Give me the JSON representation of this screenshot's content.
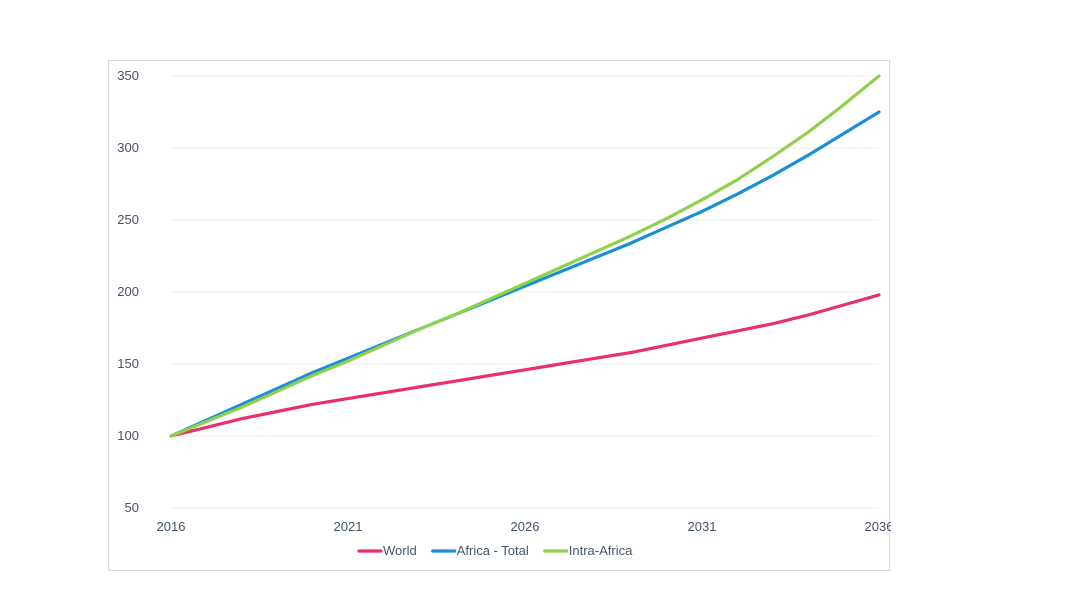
{
  "chart_data": {
    "type": "line",
    "title": "",
    "xlabel": "",
    "ylabel": "",
    "x": [
      2016,
      2017,
      2018,
      2019,
      2020,
      2021,
      2022,
      2023,
      2024,
      2025,
      2026,
      2027,
      2028,
      2029,
      2030,
      2031,
      2032,
      2033,
      2034,
      2035,
      2036
    ],
    "xticks": [
      "2016",
      "2021",
      "2026",
      "2031",
      "2036"
    ],
    "yticks": [
      "50",
      "100",
      "150",
      "200",
      "250",
      "300",
      "350"
    ],
    "xlim": [
      2016,
      2036
    ],
    "ylim": [
      50,
      350
    ],
    "grid": "horizontal",
    "legend": "bottom-center",
    "series": [
      {
        "name": "World",
        "color": "#e8306e",
        "values": [
          100,
          106,
          112,
          117,
          122,
          126,
          130,
          134,
          138,
          142,
          146,
          150,
          154,
          158,
          163,
          168,
          173,
          178,
          184,
          191,
          198
        ]
      },
      {
        "name": "Africa - Total",
        "color": "#1a8fd6",
        "values": [
          100,
          111,
          122,
          133,
          144,
          154,
          164,
          174,
          184,
          194,
          204,
          214,
          224,
          234,
          245,
          256,
          268,
          281,
          295,
          310,
          325
        ]
      },
      {
        "name": "Intra-Africa",
        "color": "#8fd14f",
        "values": [
          100,
          110,
          120,
          131,
          142,
          152,
          163,
          174,
          184,
          195,
          206,
          217,
          228,
          239,
          251,
          264,
          278,
          294,
          311,
          330,
          350
        ]
      }
    ]
  }
}
